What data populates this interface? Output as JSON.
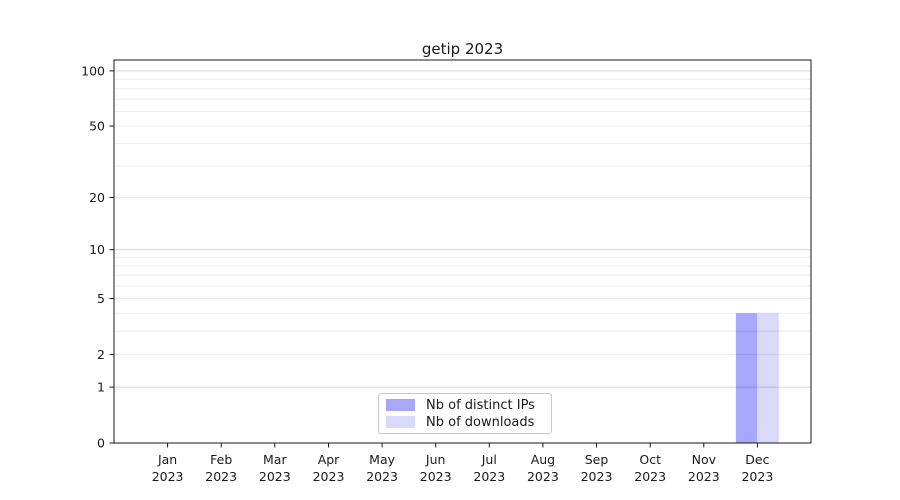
{
  "chart": {
    "title": "getip 2023"
  },
  "chart_data": {
    "type": "bar",
    "title": "getip 2023",
    "categories": [
      "Jan",
      "Feb",
      "Mar",
      "Apr",
      "May",
      "Jun",
      "Jul",
      "Aug",
      "Sep",
      "Oct",
      "Nov",
      "Dec"
    ],
    "xtick_year": "2023",
    "series": [
      {
        "name": "Nb of distinct IPs",
        "color": "#a7a7fb",
        "values": [
          0,
          0,
          0,
          0,
          0,
          0,
          0,
          0,
          0,
          0,
          0,
          4
        ]
      },
      {
        "name": "Nb of downloads",
        "color": "#d9d9fb",
        "values": [
          0,
          0,
          0,
          0,
          0,
          0,
          0,
          0,
          0,
          0,
          0,
          4
        ]
      }
    ],
    "xlabel": "",
    "ylabel": "",
    "yscale": "log1p",
    "ylim": [
      0,
      114.6
    ],
    "yticks": [
      0,
      1,
      2,
      5,
      10,
      20,
      50,
      100
    ],
    "minor_yticks": [
      3,
      4,
      6,
      7,
      8,
      9,
      30,
      40,
      60,
      70,
      80,
      90
    ],
    "grid": "both",
    "legend_position": "lower center"
  },
  "legend": {
    "items": [
      {
        "label": "Nb of distinct IPs",
        "color": "#a7a7fb"
      },
      {
        "label": "Nb of downloads",
        "color": "#d9d9fb"
      }
    ]
  },
  "colors": {
    "background": "#ffffff",
    "spine": "#1a1a1a",
    "text": "#1a1a1a",
    "grid_major": "rgba(0,0,0,0.16)",
    "grid_minor": "rgba(0,0,0,0.07)"
  }
}
